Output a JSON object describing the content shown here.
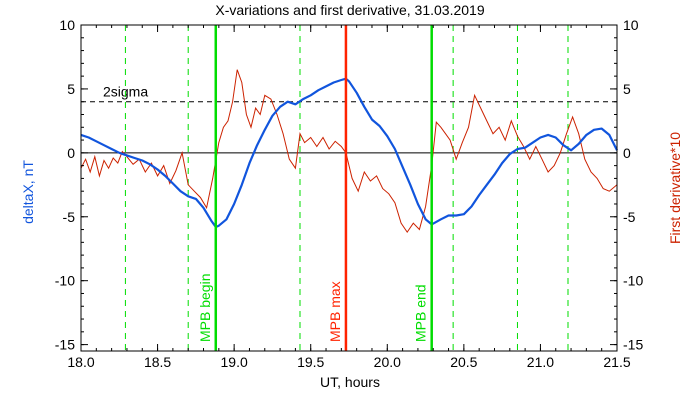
{
  "chart_data": {
    "type": "line",
    "title": "X-variations and first derivative, 31.03.2019",
    "xlabel": "UT, hours",
    "ylabel_left": "deltaX, nT",
    "ylabel_right": "First derivative*10",
    "xlim": [
      18.0,
      21.5
    ],
    "ylim": [
      -15.5,
      10
    ],
    "x_ticks": [
      "18.0",
      "18.5",
      "19.0",
      "19.5",
      "20.0",
      "20.5",
      "21.0",
      "21.5"
    ],
    "x_tick_values": [
      18.0,
      18.5,
      19.0,
      19.5,
      20.0,
      20.5,
      21.0,
      21.5
    ],
    "y_ticks_left": [
      "10",
      "5",
      "0",
      "-5",
      "-10",
      "-15"
    ],
    "y_ticks_right": [
      "10",
      "5",
      "0",
      "-5",
      "-10",
      "-15"
    ],
    "y_tick_values": [
      10,
      5,
      0,
      -5,
      -10,
      -15
    ],
    "grid": false,
    "threshold": {
      "label": "2sigma",
      "value": 4.0
    },
    "markers": [
      {
        "x": 18.88,
        "label": "MPB begin",
        "color": "#00dd00"
      },
      {
        "x": 19.73,
        "label": "MPB max",
        "color": "#ff2200"
      },
      {
        "x": 20.29,
        "label": "MPB end",
        "color": "#00dd00"
      }
    ],
    "dashed_lines_x": [
      18.29,
      18.7,
      19.43,
      20.43,
      20.85,
      21.18
    ],
    "colors": {
      "deltaX": "#1155dd",
      "derivative": "#cc2200",
      "green": "#00dd00",
      "red": "#ff2200",
      "axis": "#000000"
    },
    "series": [
      {
        "values_x": [
          18.0,
          18.05,
          18.1,
          18.15,
          18.2,
          18.25,
          18.3,
          18.35,
          18.4,
          18.45,
          18.5,
          18.55,
          18.6,
          18.65,
          18.7,
          18.75,
          18.8,
          18.85,
          18.88,
          18.9,
          18.95,
          19.0,
          19.05,
          19.1,
          19.15,
          19.2,
          19.25,
          19.3,
          19.35,
          19.4,
          19.45,
          19.5,
          19.55,
          19.6,
          19.65,
          19.7,
          19.73,
          19.75,
          19.8,
          19.85,
          19.9,
          19.95,
          20.0,
          20.05,
          20.1,
          20.15,
          20.2,
          20.25,
          20.29,
          20.35,
          20.4,
          20.45,
          20.5,
          20.55,
          20.6,
          20.65,
          20.7,
          20.75,
          20.8,
          20.85,
          20.9,
          20.95,
          21.0,
          21.05,
          21.1,
          21.15,
          21.2,
          21.25,
          21.3,
          21.35,
          21.4,
          21.45,
          21.5
        ],
        "values_y": [
          1.4,
          1.2,
          0.9,
          0.6,
          0.3,
          0.0,
          -0.2,
          -0.4,
          -0.6,
          -0.9,
          -1.3,
          -1.8,
          -2.4,
          -3.0,
          -3.4,
          -3.6,
          -4.3,
          -5.3,
          -5.8,
          -5.7,
          -5.2,
          -4.0,
          -2.5,
          -0.8,
          0.6,
          1.8,
          2.9,
          3.6,
          4.0,
          3.8,
          4.2,
          4.5,
          4.9,
          5.2,
          5.5,
          5.7,
          5.8,
          5.6,
          4.7,
          3.6,
          2.6,
          2.1,
          1.3,
          0.3,
          -1.1,
          -2.5,
          -4.0,
          -5.2,
          -5.6,
          -5.2,
          -4.9,
          -4.9,
          -4.8,
          -4.2,
          -3.3,
          -2.5,
          -1.7,
          -0.8,
          -0.1,
          0.3,
          0.4,
          0.8,
          1.2,
          1.4,
          1.2,
          0.6,
          0.2,
          0.7,
          1.4,
          1.8,
          1.9,
          1.4,
          0.2
        ]
      },
      {
        "values_x": [
          18.0,
          18.03,
          18.06,
          18.09,
          18.12,
          18.15,
          18.18,
          18.21,
          18.24,
          18.27,
          18.3,
          18.34,
          18.38,
          18.42,
          18.46,
          18.5,
          18.54,
          18.58,
          18.62,
          18.66,
          18.7,
          18.74,
          18.78,
          18.82,
          18.86,
          18.9,
          18.93,
          18.96,
          18.99,
          19.02,
          19.05,
          19.08,
          19.11,
          19.14,
          19.17,
          19.2,
          19.24,
          19.28,
          19.32,
          19.36,
          19.4,
          19.43,
          19.46,
          19.5,
          19.54,
          19.58,
          19.62,
          19.66,
          19.7,
          19.73,
          19.77,
          19.81,
          19.85,
          19.89,
          19.93,
          19.97,
          20.01,
          20.05,
          20.09,
          20.13,
          20.17,
          20.21,
          20.25,
          20.29,
          20.32,
          20.35,
          20.38,
          20.41,
          20.45,
          20.49,
          20.53,
          20.57,
          20.61,
          20.65,
          20.69,
          20.73,
          20.77,
          20.81,
          20.85,
          20.89,
          20.93,
          20.97,
          21.01,
          21.05,
          21.09,
          21.13,
          21.17,
          21.21,
          21.25,
          21.29,
          21.33,
          21.37,
          21.41,
          21.45,
          21.5
        ],
        "values_y": [
          -1.2,
          -0.5,
          -1.5,
          -0.3,
          -1.8,
          -0.6,
          -1.2,
          -0.4,
          -0.8,
          0.1,
          -0.3,
          -0.9,
          -0.5,
          -1.5,
          -0.8,
          -1.8,
          -1.0,
          -2.4,
          -1.4,
          0.0,
          -2.5,
          -3.0,
          -3.5,
          -4.3,
          -2.0,
          0.8,
          2.0,
          2.5,
          4.0,
          6.5,
          5.5,
          3.0,
          2.0,
          3.5,
          3.0,
          4.5,
          4.2,
          3.0,
          1.5,
          -0.5,
          -1.2,
          1.5,
          0.8,
          1.2,
          0.5,
          1.2,
          0.3,
          0.9,
          0.5,
          0.0,
          -2.0,
          -3.0,
          -1.5,
          -2.2,
          -1.8,
          -2.8,
          -3.2,
          -3.9,
          -5.5,
          -6.2,
          -5.5,
          -6.0,
          -4.2,
          -1.0,
          2.4,
          2.0,
          1.5,
          1.0,
          -0.5,
          0.8,
          2.0,
          4.5,
          3.5,
          2.5,
          1.5,
          2.0,
          1.0,
          2.5,
          1.3,
          0.5,
          -0.5,
          0.5,
          -0.5,
          -1.5,
          -1.0,
          0.0,
          1.5,
          2.8,
          1.5,
          -0.5,
          -1.5,
          -2.0,
          -2.8,
          -3.0,
          -2.5
        ]
      }
    ]
  }
}
